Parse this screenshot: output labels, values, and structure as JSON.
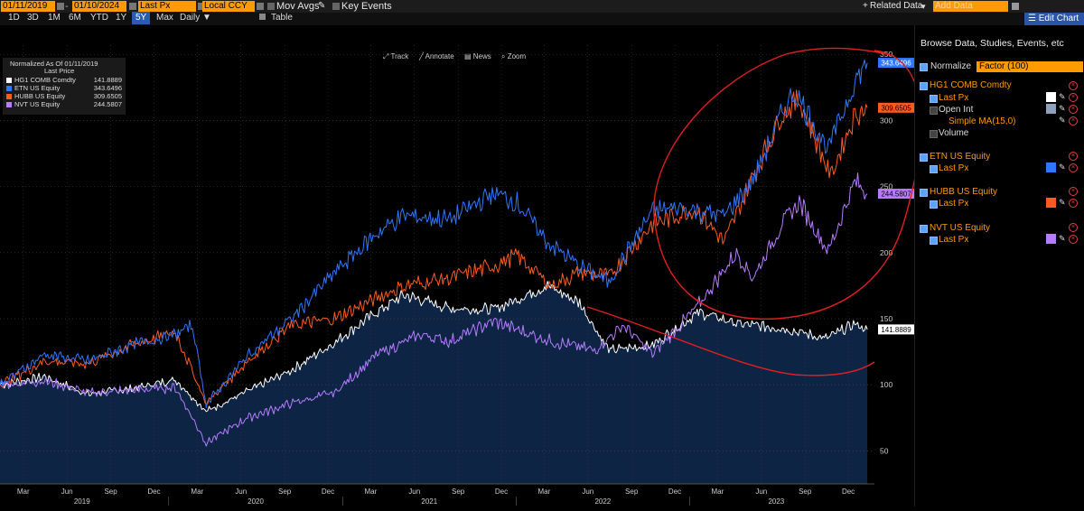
{
  "toolbar": {
    "start_date": "01/11/2019",
    "end_date": "01/10/2024",
    "field": "Last Px",
    "currency": "Local CCY",
    "mov_avgs": "Mov Avgs",
    "key_events": "Key Events",
    "related_data": "Related Data",
    "add_data": "Add Data",
    "edit_chart": "Edit Chart",
    "ranges": [
      "1D",
      "3D",
      "1M",
      "6M",
      "YTD",
      "1Y",
      "5Y",
      "Max"
    ],
    "selected_range": "5Y",
    "frequency": "Daily",
    "table": "Table",
    "chart_tools": [
      "Track",
      "Annotate",
      "News",
      "Zoom"
    ]
  },
  "legend": {
    "header1": "Normalized As Of 01/11/2019",
    "header2": "Last Price",
    "rows": [
      {
        "name": "HG1 COMB Comdty",
        "value": "141.8889",
        "color": "#ffffff"
      },
      {
        "name": "ETN US Equity",
        "value": "343.6496",
        "color": "#2f77ff"
      },
      {
        "name": "HUBB US Equity",
        "value": "309.6505",
        "color": "#ff5a1f"
      },
      {
        "name": "NVT US Equity",
        "value": "244.5807",
        "color": "#b77cff"
      }
    ]
  },
  "right_panel": {
    "title": "Browse Data, Studies, Events, etc",
    "normalize": "Normalize",
    "factor": "Factor (100)",
    "securities": [
      {
        "name": "HG1 COMB Comdty",
        "sub": [
          "Last Px",
          "Open Int",
          "Simple MA(15,0)",
          "Volume"
        ]
      },
      {
        "name": "ETN US Equity",
        "sub": [
          "Last Px"
        ]
      },
      {
        "name": "HUBB US Equity",
        "sub": [
          "Last Px"
        ]
      },
      {
        "name": "NVT US Equity",
        "sub": [
          "Last Px"
        ]
      }
    ]
  },
  "chart_data": {
    "type": "line",
    "ylim": [
      25,
      357
    ],
    "yticks": [
      50,
      100,
      150,
      200,
      250,
      300,
      350
    ],
    "xlim": [
      "2019-01-11",
      "2024-01-25"
    ],
    "x_tick_labels": [
      "Mar",
      "Jun",
      "Sep",
      "Dec",
      "Mar",
      "Jun",
      "Sep",
      "Dec",
      "Mar",
      "Jun",
      "Sep",
      "Dec",
      "Mar",
      "Jun",
      "Sep",
      "Dec",
      "Mar",
      "Jun",
      "Sep",
      "Dec"
    ],
    "x_year_labels": [
      "2019",
      "2020",
      "2021",
      "2022",
      "2023"
    ],
    "end_labels": [
      "343.6496",
      "309.6505",
      "244.5807",
      "141.8889"
    ],
    "series": [
      {
        "name": "HG1 COMB Comdty",
        "color": "#ffffff",
        "fill": "#0d2444",
        "x": [
          "2019-01-11",
          "2019-04-15",
          "2019-07-15",
          "2019-10-15",
          "2020-01-15",
          "2020-03-20",
          "2020-06-15",
          "2020-09-15",
          "2020-12-15",
          "2021-03-01",
          "2021-05-10",
          "2021-08-15",
          "2021-11-15",
          "2022-03-08",
          "2022-05-15",
          "2022-07-15",
          "2022-10-15",
          "2023-01-20",
          "2023-04-15",
          "2023-07-15",
          "2023-10-15",
          "2023-12-15",
          "2024-01-10"
        ],
        "y": [
          100,
          106,
          93,
          97,
          104,
          80,
          95,
          111,
          132,
          152,
          168,
          158,
          157,
          175,
          162,
          126,
          130,
          155,
          146,
          143,
          135,
          146,
          141.89
        ]
      },
      {
        "name": "ETN US Equity",
        "color": "#2f77ff",
        "x": [
          "2019-01-11",
          "2019-04-15",
          "2019-07-15",
          "2019-10-15",
          "2020-01-15",
          "2020-02-20",
          "2020-03-20",
          "2020-06-15",
          "2020-09-15",
          "2020-12-15",
          "2021-03-15",
          "2021-05-10",
          "2021-08-15",
          "2021-11-15",
          "2022-01-03",
          "2022-03-08",
          "2022-05-15",
          "2022-07-15",
          "2022-10-15",
          "2022-12-15",
          "2023-03-15",
          "2023-05-15",
          "2023-07-15",
          "2023-08-10",
          "2023-10-20",
          "2023-12-15",
          "2024-01-10"
        ],
        "y": [
          100,
          123,
          118,
          130,
          138,
          145,
          85,
          122,
          150,
          185,
          215,
          228,
          225,
          245,
          238,
          208,
          190,
          178,
          232,
          234,
          228,
          255,
          306,
          322,
          278,
          330,
          343.65
        ]
      },
      {
        "name": "HUBB US Equity",
        "color": "#ff5a1f",
        "x": [
          "2019-01-11",
          "2019-04-15",
          "2019-07-15",
          "2019-10-15",
          "2020-01-15",
          "2020-03-20",
          "2020-06-15",
          "2020-09-15",
          "2020-12-15",
          "2021-03-15",
          "2021-05-10",
          "2021-08-15",
          "2021-11-15",
          "2022-01-03",
          "2022-03-15",
          "2022-05-15",
          "2022-07-15",
          "2022-10-15",
          "2023-01-15",
          "2023-03-15",
          "2023-05-15",
          "2023-07-15",
          "2023-08-20",
          "2023-10-25",
          "2023-12-15",
          "2024-01-10"
        ],
        "y": [
          100,
          118,
          116,
          130,
          140,
          86,
          118,
          145,
          150,
          166,
          175,
          181,
          190,
          198,
          175,
          185,
          182,
          222,
          233,
          208,
          258,
          305,
          316,
          258,
          305,
          309.65
        ]
      },
      {
        "name": "NVT US Equity",
        "color": "#b77cff",
        "x": [
          "2019-01-11",
          "2019-04-15",
          "2019-07-15",
          "2019-10-15",
          "2020-01-15",
          "2020-03-20",
          "2020-06-15",
          "2020-09-15",
          "2020-12-15",
          "2021-03-15",
          "2021-06-15",
          "2021-08-15",
          "2021-11-15",
          "2022-03-15",
          "2022-06-15",
          "2022-08-15",
          "2022-10-15",
          "2023-01-15",
          "2023-04-10",
          "2023-05-15",
          "2023-07-15",
          "2023-08-20",
          "2023-10-20",
          "2023-12-15",
          "2024-01-10"
        ],
        "y": [
          100,
          103,
          94,
          96,
          98,
          56,
          75,
          86,
          94,
          123,
          138,
          133,
          148,
          133,
          126,
          145,
          123,
          158,
          200,
          181,
          222,
          238,
          201,
          254,
          244.58
        ]
      }
    ]
  }
}
